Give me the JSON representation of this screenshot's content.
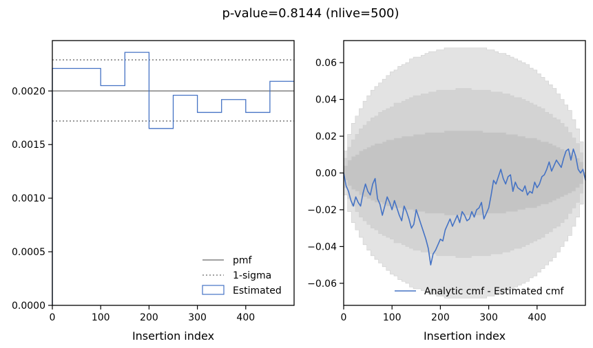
{
  "figure": {
    "title": "p-value=0.8144 (nlive=500)"
  },
  "chart_data": [
    {
      "type": "step",
      "xlabel": "Insertion index",
      "ylabel": "",
      "xlim": [
        0,
        500
      ],
      "ylim": [
        0,
        0.00247
      ],
      "xticks": [
        0,
        100,
        200,
        300,
        400
      ],
      "xtick_labels": [
        "0",
        "100",
        "200",
        "300",
        "400"
      ],
      "yticks": [
        0,
        0.0005,
        0.001,
        0.0015,
        0.002
      ],
      "ytick_labels": [
        "0.0000",
        "0.0005",
        "0.0010",
        "0.0015",
        "0.0020"
      ],
      "pmf": 0.002,
      "sigma_upper": 0.00229,
      "sigma_lower": 0.00172,
      "estimated_bins": [
        {
          "x0": 0,
          "x1": 100,
          "value": 0.00221
        },
        {
          "x0": 100,
          "x1": 150,
          "value": 0.00205
        },
        {
          "x0": 150,
          "x1": 200,
          "value": 0.00236
        },
        {
          "x0": 200,
          "x1": 250,
          "value": 0.00165
        },
        {
          "x0": 250,
          "x1": 300,
          "value": 0.00196
        },
        {
          "x0": 300,
          "x1": 350,
          "value": 0.0018
        },
        {
          "x0": 350,
          "x1": 400,
          "value": 0.00192
        },
        {
          "x0": 400,
          "x1": 450,
          "value": 0.0018
        },
        {
          "x0": 450,
          "x1": 500,
          "value": 0.00209
        }
      ],
      "legend": [
        {
          "label": "pmf",
          "style": "solid",
          "color": "#808080"
        },
        {
          "label": "1-sigma",
          "style": "dotted",
          "color": "#808080"
        },
        {
          "label": "Estimated",
          "style": "box",
          "color": "#4472c4"
        }
      ],
      "legend_position": "lower-right"
    },
    {
      "type": "line",
      "xlabel": "Insertion index",
      "ylabel": "",
      "xlim": [
        0,
        500
      ],
      "ylim": [
        -0.072,
        0.072
      ],
      "xticks": [
        0,
        100,
        200,
        300,
        400
      ],
      "xtick_labels": [
        "0",
        "100",
        "200",
        "300",
        "400"
      ],
      "yticks": [
        -0.06,
        -0.04,
        -0.02,
        0.0,
        0.02,
        0.04,
        0.06
      ],
      "ytick_labels": [
        "−0.06",
        "−0.04",
        "−0.02",
        "0.00",
        "0.02",
        "0.04",
        "0.06"
      ],
      "bands": [
        {
          "sigma": 3,
          "amplitude": 0.0685,
          "color": "#e3e3e3"
        },
        {
          "sigma": 2,
          "amplitude": 0.0456,
          "color": "#d3d3d3"
        },
        {
          "sigma": 1,
          "amplitude": 0.0228,
          "color": "#c4c4c4"
        }
      ],
      "series": [
        {
          "name": "Analytic cmf - Estimated cmf",
          "color": "#4472c4",
          "x": [
            0,
            5,
            10,
            15,
            20,
            25,
            30,
            35,
            40,
            45,
            50,
            55,
            60,
            65,
            70,
            75,
            80,
            85,
            90,
            95,
            100,
            105,
            110,
            115,
            120,
            125,
            130,
            135,
            140,
            145,
            150,
            155,
            160,
            165,
            170,
            175,
            180,
            185,
            190,
            195,
            200,
            205,
            210,
            215,
            220,
            225,
            230,
            235,
            240,
            245,
            250,
            255,
            260,
            265,
            270,
            275,
            280,
            285,
            290,
            295,
            300,
            305,
            310,
            315,
            320,
            325,
            330,
            335,
            340,
            345,
            350,
            355,
            360,
            365,
            370,
            375,
            380,
            385,
            390,
            395,
            400,
            405,
            410,
            415,
            420,
            425,
            430,
            435,
            440,
            445,
            450,
            455,
            460,
            465,
            470,
            475,
            480,
            485,
            490,
            495,
            500
          ],
          "y": [
            0,
            -0.007,
            -0.01,
            -0.015,
            -0.018,
            -0.013,
            -0.016,
            -0.018,
            -0.011,
            -0.006,
            -0.01,
            -0.012,
            -0.006,
            -0.003,
            -0.014,
            -0.017,
            -0.023,
            -0.018,
            -0.013,
            -0.016,
            -0.02,
            -0.015,
            -0.019,
            -0.023,
            -0.026,
            -0.018,
            -0.021,
            -0.025,
            -0.03,
            -0.028,
            -0.02,
            -0.024,
            -0.028,
            -0.032,
            -0.036,
            -0.041,
            -0.05,
            -0.044,
            -0.042,
            -0.039,
            -0.036,
            -0.037,
            -0.031,
            -0.028,
            -0.025,
            -0.029,
            -0.026,
            -0.023,
            -0.027,
            -0.021,
            -0.023,
            -0.026,
            -0.025,
            -0.021,
            -0.024,
            -0.02,
            -0.019,
            -0.016,
            -0.025,
            -0.022,
            -0.019,
            -0.012,
            -0.004,
            -0.006,
            -0.002,
            0.002,
            -0.003,
            -0.006,
            -0.002,
            -0.001,
            -0.01,
            -0.005,
            -0.008,
            -0.009,
            -0.01,
            -0.007,
            -0.012,
            -0.01,
            -0.011,
            -0.005,
            -0.008,
            -0.006,
            -0.002,
            -0.001,
            0.002,
            0.006,
            0.001,
            0.004,
            0.007,
            0.005,
            0.003,
            0.008,
            0.012,
            0.013,
            0.007,
            0.013,
            0.009,
            0.002,
            0.0,
            0.002,
            -0.004
          ]
        }
      ],
      "legend": [
        {
          "label": "Analytic cmf - Estimated cmf",
          "style": "solid",
          "color": "#4472c4"
        }
      ],
      "legend_position": "lower-right"
    }
  ]
}
